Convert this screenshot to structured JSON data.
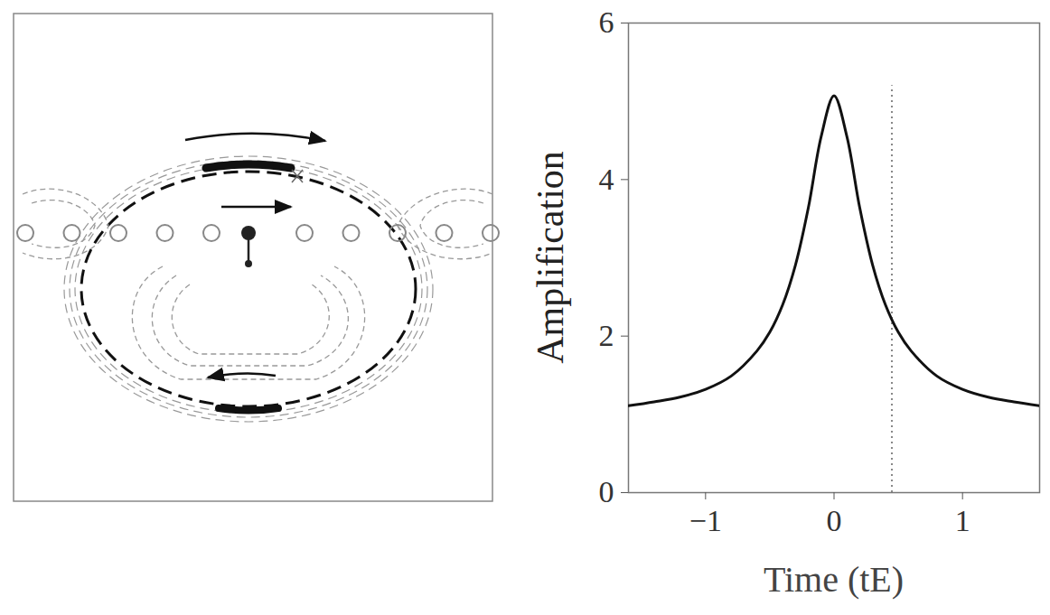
{
  "chart_data": {
    "type": "line",
    "x_label": "Time (tE)",
    "y_label": "Amplification",
    "x": [
      -1.6,
      -1.4,
      -1.2,
      -1.0,
      -0.8,
      -0.6,
      -0.5,
      -0.4,
      -0.3,
      -0.2,
      -0.1,
      0,
      0.1,
      0.2,
      0.3,
      0.4,
      0.5,
      0.6,
      0.8,
      1.0,
      1.2,
      1.4,
      1.6
    ],
    "values": [
      1.11,
      1.16,
      1.22,
      1.32,
      1.49,
      1.81,
      2.05,
      2.4,
      2.91,
      3.64,
      4.55,
      5.07,
      4.55,
      3.64,
      2.91,
      2.4,
      2.05,
      1.81,
      1.49,
      1.32,
      1.22,
      1.16,
      1.11
    ],
    "color": "#111111",
    "xlim": [
      -1.6,
      1.6
    ],
    "xticks": [
      -1,
      0,
      1
    ],
    "ylim": [
      0,
      6
    ],
    "yticks": [
      0,
      2,
      4,
      6
    ],
    "grid": false,
    "vline": {
      "x": 0.45,
      "y_range": [
        0,
        5.2
      ],
      "line_style": "dotted"
    }
  }
}
